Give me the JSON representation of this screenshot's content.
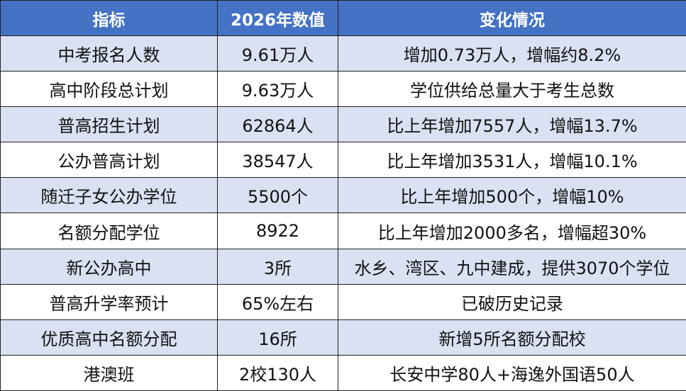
{
  "table": {
    "headers": [
      "指标",
      "2026年数值",
      "变化情况"
    ],
    "rows": [
      [
        "中考报名人数",
        "9.61万人",
        "增加0.73万人，增幅约8.2%"
      ],
      [
        "高中阶段总计划",
        "9.63万人",
        "学位供给总量大于考生总数"
      ],
      [
        "普高招生计划",
        "62864人",
        "比上年增加7557人，增幅13.7%"
      ],
      [
        "公办普高计划",
        "38547人",
        "比上年增加3531人，增幅10.1%"
      ],
      [
        "随迁子女公办学位",
        "5500个",
        "比上年增加500个，增幅10%"
      ],
      [
        "名额分配学位",
        "8922",
        "比上年增加2000多名，增幅超30%"
      ],
      [
        "新公办高中",
        "3所",
        "水乡、湾区、九中建成，提供3070个学位"
      ],
      [
        "普高升学率预计",
        "65%左右",
        "已破历史记录"
      ],
      [
        "优质高中名额分配",
        "16所",
        "新增5所名额分配校"
      ],
      [
        "港澳班",
        "2校130人",
        "长安中学80人+海逸外国语50人"
      ]
    ]
  },
  "colors": {
    "header_bg": "#4472c4",
    "header_text": "#ffffff",
    "band_bg": "#d9e1f2",
    "row_bg": "#ffffff",
    "border": "#1f1f1f"
  }
}
